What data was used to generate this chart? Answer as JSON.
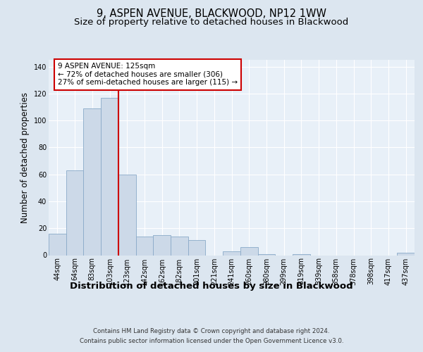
{
  "title": "9, ASPEN AVENUE, BLACKWOOD, NP12 1WW",
  "subtitle": "Size of property relative to detached houses in Blackwood",
  "xlabel": "Distribution of detached houses by size in Blackwood",
  "ylabel": "Number of detached properties",
  "footer_line1": "Contains HM Land Registry data © Crown copyright and database right 2024.",
  "footer_line2": "Contains public sector information licensed under the Open Government Licence v3.0.",
  "categories": [
    "44sqm",
    "64sqm",
    "83sqm",
    "103sqm",
    "123sqm",
    "142sqm",
    "162sqm",
    "182sqm",
    "201sqm",
    "221sqm",
    "241sqm",
    "260sqm",
    "280sqm",
    "299sqm",
    "319sqm",
    "339sqm",
    "358sqm",
    "378sqm",
    "398sqm",
    "417sqm",
    "437sqm"
  ],
  "values": [
    16,
    63,
    109,
    117,
    60,
    14,
    15,
    14,
    11,
    0,
    3,
    6,
    1,
    0,
    1,
    0,
    0,
    0,
    0,
    0,
    2
  ],
  "bar_color": "#ccd9e8",
  "bar_edge_color": "#8aaac8",
  "vline_index": 4,
  "vline_color": "#cc0000",
  "annotation_text": "9 ASPEN AVENUE: 125sqm\n← 72% of detached houses are smaller (306)\n27% of semi-detached houses are larger (115) →",
  "annotation_box_facecolor": "#ffffff",
  "annotation_box_edgecolor": "#cc0000",
  "ylim": [
    0,
    145
  ],
  "yticks": [
    0,
    20,
    40,
    60,
    80,
    100,
    120,
    140
  ],
  "bg_color": "#dce6f0",
  "plot_bg_color": "#e8f0f8",
  "title_fontsize": 10.5,
  "subtitle_fontsize": 9.5,
  "tick_fontsize": 7,
  "ylabel_fontsize": 8.5,
  "xlabel_fontsize": 9.5,
  "footer_fontsize": 6.2
}
